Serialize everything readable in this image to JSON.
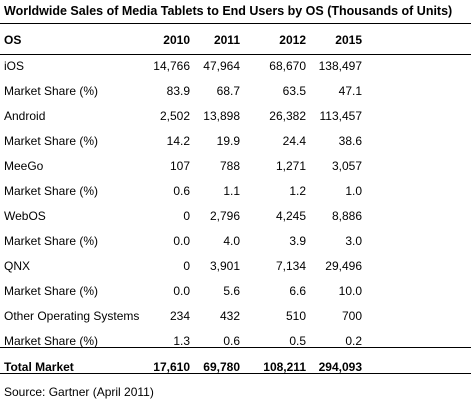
{
  "title": "Worldwide Sales of Media Tablets to End Users by OS (Thousands of Units)",
  "columns": [
    "OS",
    "2010",
    "2011",
    "2012",
    "2015"
  ],
  "rows": [
    {
      "label": "iOS",
      "values": [
        "14,766",
        "47,964",
        "68,670",
        "138,497"
      ]
    },
    {
      "label": "Market Share (%)",
      "values": [
        "83.9",
        "68.7",
        "63.5",
        "47.1"
      ]
    },
    {
      "label": "Android",
      "values": [
        "2,502",
        "13,898",
        "26,382",
        "113,457"
      ]
    },
    {
      "label": "Market Share (%)",
      "values": [
        "14.2",
        "19.9",
        "24.4",
        "38.6"
      ]
    },
    {
      "label": "MeeGo",
      "values": [
        "107",
        "788",
        "1,271",
        "3,057"
      ]
    },
    {
      "label": "Market Share (%)",
      "values": [
        "0.6",
        "1.1",
        "1.2",
        "1.0"
      ]
    },
    {
      "label": "WebOS",
      "values": [
        "0",
        "2,796",
        "4,245",
        "8,886"
      ]
    },
    {
      "label": "Market Share (%)",
      "values": [
        "0.0",
        "4.0",
        "3.9",
        "3.0"
      ]
    },
    {
      "label": "QNX",
      "values": [
        "0",
        "3,901",
        "7,134",
        "29,496"
      ]
    },
    {
      "label": "Market Share (%)",
      "values": [
        "0.0",
        "5.6",
        "6.6",
        "10.0"
      ]
    },
    {
      "label": "Other Operating Systems",
      "values": [
        "234",
        "432",
        "510",
        "700"
      ]
    },
    {
      "label": "Market Share (%)",
      "values": [
        "1.3",
        "0.6",
        "0.5",
        "0.2"
      ]
    }
  ],
  "total": {
    "label": "Total Market",
    "values": [
      "17,610",
      "69,780",
      "108,211",
      "294,093"
    ]
  },
  "source": "Source: Gartner (April 2011)"
}
